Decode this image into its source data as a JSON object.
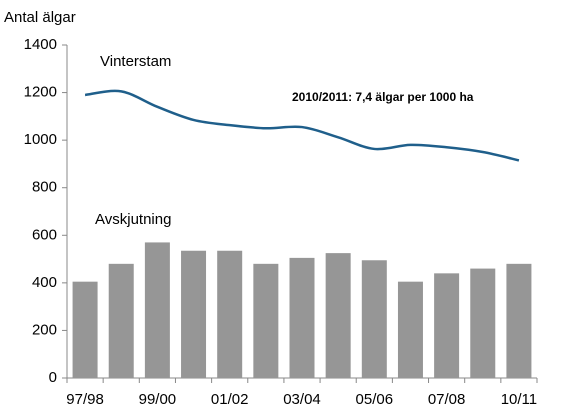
{
  "chart_data": {
    "type": "bar-line",
    "y_label": "Antal älgar",
    "annotation": "2010/2011: 7,4 älgar per 1000 ha",
    "categories": [
      "97/98",
      null,
      "99/00",
      null,
      "01/02",
      null,
      "03/04",
      null,
      "05/06",
      null,
      "07/08",
      null,
      "10/11"
    ],
    "series": [
      {
        "name": "Vinterstam",
        "type": "line",
        "color": "#1f5f8b",
        "values": [
          1190,
          1205,
          1140,
          1085,
          1063,
          1050,
          1055,
          1012,
          963,
          980,
          970,
          950,
          915
        ]
      },
      {
        "name": "Avskjutning",
        "type": "bar",
        "color": "#969696",
        "values": [
          405,
          480,
          570,
          535,
          535,
          480,
          505,
          525,
          495,
          405,
          440,
          460,
          480
        ]
      }
    ],
    "ylim": [
      0,
      1400
    ],
    "yticks": [
      0,
      200,
      400,
      600,
      800,
      1000,
      1200,
      1400
    ]
  }
}
